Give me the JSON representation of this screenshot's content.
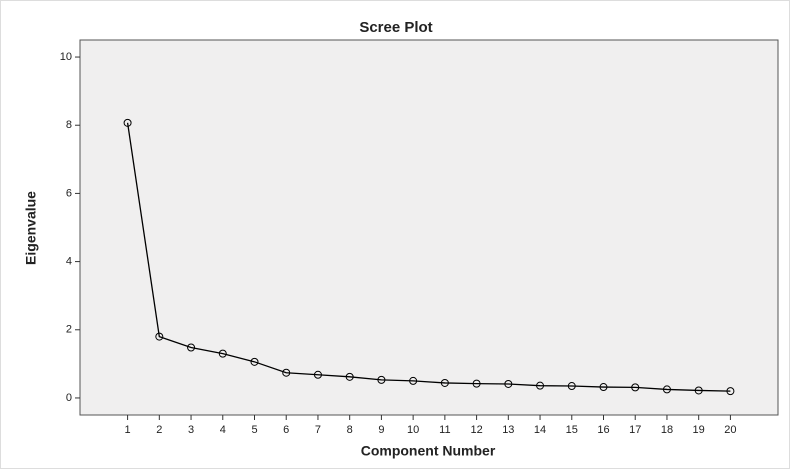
{
  "chart_data": {
    "type": "line",
    "title": "Scree Plot",
    "x_label": "Component Number",
    "y_label": "Eigenvalue",
    "x": [
      1,
      2,
      3,
      4,
      5,
      6,
      7,
      8,
      9,
      10,
      11,
      12,
      13,
      14,
      15,
      16,
      17,
      18,
      19,
      20
    ],
    "series": [
      {
        "name": "Eigenvalue",
        "color": "#000000",
        "values": [
          8.07,
          1.8,
          1.48,
          1.3,
          1.06,
          0.74,
          0.68,
          0.62,
          0.53,
          0.5,
          0.44,
          0.42,
          0.41,
          0.36,
          0.35,
          0.32,
          0.31,
          0.25,
          0.22,
          0.2
        ]
      }
    ],
    "xlim": [
      -0.5,
      21.5
    ],
    "xticks": [
      1,
      2,
      3,
      4,
      5,
      6,
      7,
      8,
      9,
      10,
      11,
      12,
      13,
      14,
      15,
      16,
      17,
      18,
      19,
      20
    ],
    "ylim": [
      -0.5,
      10.5
    ],
    "yticks": [
      0,
      2,
      4,
      6,
      8,
      10
    ],
    "background": "#f0efef"
  }
}
